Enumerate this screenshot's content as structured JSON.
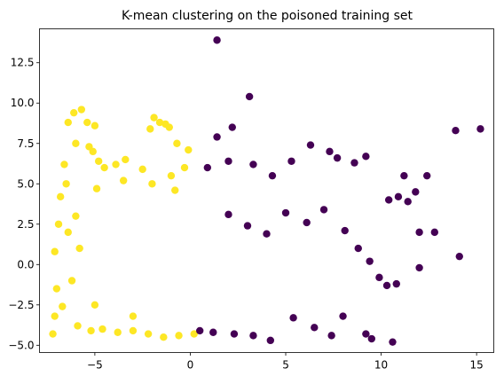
{
  "chart_data": {
    "type": "scatter",
    "title": "K-mean clustering on the poisoned training set",
    "xlabel": "",
    "ylabel": "",
    "xlim": [
      -7.9,
      15.9
    ],
    "ylim": [
      -5.45,
      14.6
    ],
    "xticks": [
      -5,
      0,
      5,
      10,
      15
    ],
    "yticks": [
      -5.0,
      -2.5,
      0.0,
      2.5,
      5.0,
      7.5,
      10.0,
      12.5
    ],
    "xtick_labels": [
      "−5",
      "0",
      "5",
      "10",
      "15"
    ],
    "ytick_labels": [
      "−5.0",
      "−2.5",
      "0.0",
      "2.5",
      "5.0",
      "7.5",
      "10.0",
      "12.5"
    ],
    "grid": false,
    "legend": "none",
    "colors": {
      "cluster_0": "#440154",
      "cluster_1": "#fde725"
    },
    "series": [
      {
        "cluster": 1,
        "points": [
          [
            -7.2,
            -4.3
          ],
          [
            -7.1,
            -3.2
          ],
          [
            -7.0,
            -1.5
          ],
          [
            -7.1,
            0.8
          ],
          [
            -6.9,
            2.5
          ],
          [
            -6.8,
            4.2
          ],
          [
            -6.6,
            6.2
          ],
          [
            -6.4,
            8.8
          ],
          [
            -6.1,
            9.4
          ],
          [
            -5.7,
            9.6
          ],
          [
            -5.4,
            8.8
          ],
          [
            -5.0,
            8.6
          ],
          [
            -6.0,
            7.5
          ],
          [
            -5.3,
            7.3
          ],
          [
            -5.1,
            7.0
          ],
          [
            -4.8,
            6.4
          ],
          [
            -4.5,
            6.0
          ],
          [
            -3.9,
            6.2
          ],
          [
            -3.4,
            6.5
          ],
          [
            -2.5,
            5.9
          ],
          [
            -1.9,
            9.1
          ],
          [
            -1.6,
            8.8
          ],
          [
            -1.3,
            8.7
          ],
          [
            -1.1,
            8.5
          ],
          [
            -2.1,
            8.4
          ],
          [
            -0.7,
            7.5
          ],
          [
            -0.1,
            7.1
          ],
          [
            -0.3,
            6.0
          ],
          [
            -1.0,
            5.5
          ],
          [
            -6.5,
            5.0
          ],
          [
            -6.0,
            3.0
          ],
          [
            -5.8,
            1.0
          ],
          [
            -6.2,
            -1.0
          ],
          [
            -6.7,
            -2.6
          ],
          [
            -5.9,
            -3.8
          ],
          [
            -5.2,
            -4.1
          ],
          [
            -4.6,
            -4.0
          ],
          [
            -3.8,
            -4.2
          ],
          [
            -3.0,
            -4.1
          ],
          [
            -2.2,
            -4.3
          ],
          [
            -1.4,
            -4.5
          ],
          [
            -0.6,
            -4.4
          ],
          [
            0.2,
            -4.3
          ],
          [
            -4.9,
            4.7
          ],
          [
            -3.5,
            5.2
          ],
          [
            -2.0,
            5.0
          ],
          [
            -0.8,
            4.6
          ],
          [
            -6.4,
            2.0
          ],
          [
            -5.0,
            -2.5
          ],
          [
            -3.0,
            -3.2
          ]
        ]
      },
      {
        "cluster": 0,
        "points": [
          [
            1.4,
            13.9
          ],
          [
            3.1,
            10.4
          ],
          [
            2.2,
            8.5
          ],
          [
            1.4,
            7.9
          ],
          [
            6.3,
            7.4
          ],
          [
            7.3,
            7.0
          ],
          [
            8.6,
            6.3
          ],
          [
            9.2,
            6.7
          ],
          [
            7.7,
            6.6
          ],
          [
            5.3,
            6.4
          ],
          [
            2.0,
            6.4
          ],
          [
            3.3,
            6.2
          ],
          [
            0.9,
            6.0
          ],
          [
            4.3,
            5.5
          ],
          [
            11.2,
            5.5
          ],
          [
            12.4,
            5.5
          ],
          [
            13.9,
            8.3
          ],
          [
            15.2,
            8.4
          ],
          [
            11.4,
            3.9
          ],
          [
            11.8,
            4.5
          ],
          [
            10.9,
            4.2
          ],
          [
            10.4,
            4.0
          ],
          [
            12.0,
            2.0
          ],
          [
            12.8,
            2.0
          ],
          [
            14.1,
            0.5
          ],
          [
            12.0,
            -0.2
          ],
          [
            10.3,
            -1.3
          ],
          [
            10.8,
            -1.2
          ],
          [
            9.5,
            -4.6
          ],
          [
            10.6,
            -4.8
          ],
          [
            9.2,
            -4.3
          ],
          [
            8.0,
            -3.2
          ],
          [
            6.5,
            -3.9
          ],
          [
            5.4,
            -3.3
          ],
          [
            4.2,
            -4.7
          ],
          [
            3.3,
            -4.4
          ],
          [
            2.3,
            -4.3
          ],
          [
            1.2,
            -4.2
          ],
          [
            0.5,
            -4.1
          ],
          [
            7.4,
            -4.4
          ],
          [
            8.8,
            1.0
          ],
          [
            9.4,
            0.2
          ],
          [
            9.9,
            -0.8
          ],
          [
            8.1,
            2.1
          ],
          [
            7.0,
            3.4
          ],
          [
            6.1,
            2.6
          ],
          [
            5.0,
            3.2
          ],
          [
            4.0,
            1.9
          ],
          [
            3.0,
            2.4
          ],
          [
            2.0,
            3.1
          ]
        ]
      }
    ]
  }
}
